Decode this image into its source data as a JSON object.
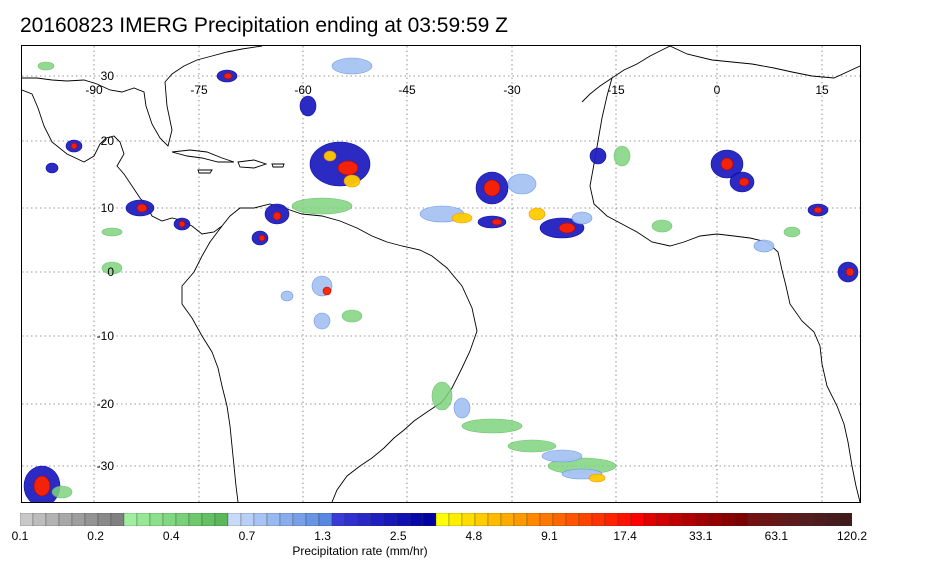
{
  "title": "20160823 IMERG Precipitation ending at 03:59:59 Z",
  "map": {
    "lon_labels": [
      "-90",
      "-75",
      "-60",
      "-45",
      "-30",
      "-15",
      "0",
      "15"
    ],
    "lat_labels": [
      "30",
      "20",
      "10",
      "0",
      "-10",
      "-20",
      "-30"
    ]
  },
  "colorbar": {
    "title": "Precipitation rate (mm/hr)",
    "labels": [
      "0.1",
      "0.2",
      "0.4",
      "0.7",
      "1.3",
      "2.5",
      "4.8",
      "9.1",
      "17.4",
      "33.1",
      "63.1",
      "120.2"
    ],
    "groups": [
      {
        "colors": [
          "#c8c8c8",
          "#bdbdbd",
          "#b3b3b3",
          "#a8a8a8",
          "#9e9e9e",
          "#949494",
          "#8a8a8a",
          "#808080"
        ]
      },
      {
        "colors": [
          "#a0eea0",
          "#96e896",
          "#8ce08c",
          "#82d882",
          "#78d078",
          "#6ec86e",
          "#64c064",
          "#5ab85a"
        ]
      },
      {
        "colors": [
          "#c8daf8",
          "#b8cff6",
          "#a8c4f4",
          "#98b8f0",
          "#88acec",
          "#78a0e8",
          "#6894e4",
          "#5888e0"
        ]
      },
      {
        "colors": [
          "#3a3ad8",
          "#3030d0",
          "#2828c8",
          "#2020c0",
          "#1818b8",
          "#1010b0",
          "#0808a8",
          "#0000a0"
        ]
      },
      {
        "colors": [
          "#ffff00",
          "#ffee00",
          "#ffdd00",
          "#ffcc00",
          "#ffbb00",
          "#ffaa00",
          "#ff9900",
          "#ff8800"
        ]
      },
      {
        "colors": [
          "#ff7700",
          "#ff6600",
          "#ff5500",
          "#ff4400",
          "#ff3300",
          "#ff2200",
          "#ff1100",
          "#ff0000"
        ]
      },
      {
        "colors": [
          "#e00000",
          "#d00000",
          "#c00000",
          "#b00000",
          "#a00000",
          "#940000",
          "#880000",
          "#7c0000"
        ]
      },
      {
        "colors": [
          "#741010",
          "#6c1414",
          "#641818",
          "#5c1a1a",
          "#541c1c",
          "#4e1c1c",
          "#481c1c",
          "#421a1a"
        ]
      }
    ]
  }
}
